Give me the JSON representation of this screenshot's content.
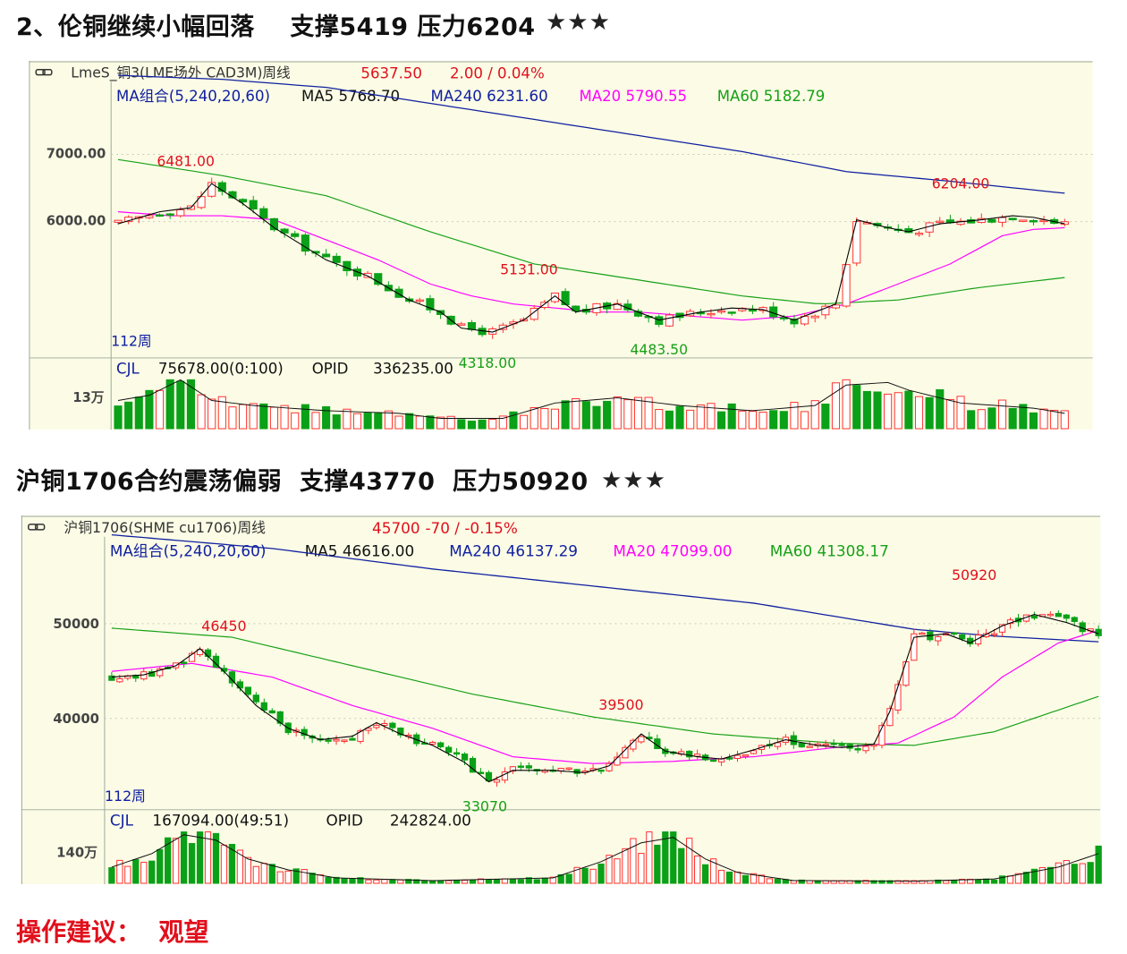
{
  "heading1": "2、伦铜继续小幅回落    支撑5419 压力6204",
  "heading2": "沪铜1706合约震荡偏弱  支撑43770  压力50920",
  "stars": "★★★",
  "advice": "操作建议：  观望",
  "colors": {
    "bg": "#fcfce6",
    "border": "#9aa89a",
    "up": "#ff2f2f",
    "down": "#0aa018",
    "ma5": "#000000",
    "ma20": "#ff00ff",
    "ma60": "#18a018",
    "ma240": "#1020a0",
    "red_text": "#e0101c",
    "green_text": "#18a018",
    "blue_text": "#1020a0"
  },
  "charts": [
    {
      "title_icon": "chain-link-icon",
      "title": "LmeS_铜3(LME场外 CAD3M)周线",
      "price": "5637.50",
      "change": "2.00 / 0.04%",
      "ma_line": "MA组合(5,240,20,60)",
      "ma5": "MA5 5768.70",
      "ma240": "MA240 6231.60",
      "ma20": "MA20 5790.55",
      "ma60": "MA60 5182.79",
      "period": "112周",
      "vol_label": "CJL",
      "vol_value": "75678.00(0:100)",
      "opid_label": "OPID",
      "opid_value": "336235.00",
      "vol_tick": "13万",
      "annotations": [
        {
          "text": "6481.00",
          "kind": "high"
        },
        {
          "text": "5131.00",
          "kind": "high"
        },
        {
          "text": "6204.00",
          "kind": "high"
        },
        {
          "text": "4318.00",
          "kind": "low"
        },
        {
          "text": "4483.50",
          "kind": "low"
        }
      ],
      "chart_data": {
        "type": "candlestick",
        "y_ticks": [
          7000,
          6000
        ],
        "y_tick_labels": [
          "7000.00",
          "6000.00"
        ],
        "ylim": [
          4200,
          7880
        ],
        "bars": 112,
        "close_path": [
          [
            0,
            5850
          ],
          [
            8,
            6000
          ],
          [
            14,
            6050
          ],
          [
            18,
            6350
          ],
          [
            24,
            6100
          ],
          [
            30,
            5800
          ],
          [
            40,
            5400
          ],
          [
            48,
            5200
          ],
          [
            56,
            4900
          ],
          [
            62,
            4750
          ],
          [
            66,
            4550
          ],
          [
            72,
            4500
          ],
          [
            78,
            4650
          ],
          [
            84,
            4950
          ],
          [
            88,
            4750
          ],
          [
            96,
            4850
          ],
          [
            104,
            4650
          ],
          [
            112,
            4750
          ],
          [
            118,
            4800
          ],
          [
            124,
            4780
          ],
          [
            130,
            4650
          ],
          [
            138,
            4850
          ],
          [
            142,
            5900
          ],
          [
            148,
            5800
          ],
          [
            152,
            5750
          ],
          [
            158,
            5850
          ],
          [
            166,
            5900
          ],
          [
            172,
            5950
          ],
          [
            176,
            5930
          ],
          [
            182,
            5850
          ]
        ],
        "ma20_path": [
          [
            0,
            6000
          ],
          [
            10,
            5950
          ],
          [
            20,
            5950
          ],
          [
            30,
            5900
          ],
          [
            40,
            5650
          ],
          [
            50,
            5400
          ],
          [
            60,
            5100
          ],
          [
            68,
            4950
          ],
          [
            76,
            4850
          ],
          [
            84,
            4800
          ],
          [
            92,
            4750
          ],
          [
            100,
            4750
          ],
          [
            110,
            4700
          ],
          [
            120,
            4650
          ],
          [
            130,
            4700
          ],
          [
            140,
            4850
          ],
          [
            150,
            5100
          ],
          [
            160,
            5350
          ],
          [
            170,
            5700
          ],
          [
            176,
            5780
          ],
          [
            182,
            5800
          ]
        ],
        "ma60_path": [
          [
            0,
            6650
          ],
          [
            20,
            6450
          ],
          [
            40,
            6200
          ],
          [
            60,
            5750
          ],
          [
            80,
            5350
          ],
          [
            100,
            5150
          ],
          [
            120,
            4950
          ],
          [
            135,
            4850
          ],
          [
            150,
            4900
          ],
          [
            165,
            5050
          ],
          [
            182,
            5180
          ]
        ],
        "ma240_path": [
          [
            0,
            7700
          ],
          [
            20,
            7650
          ],
          [
            40,
            7550
          ],
          [
            60,
            7350
          ],
          [
            80,
            7150
          ],
          [
            100,
            6950
          ],
          [
            120,
            6750
          ],
          [
            140,
            6500
          ],
          [
            160,
            6380
          ],
          [
            182,
            6230
          ]
        ],
        "highs": [
          [
            13,
            6481
          ],
          [
            79,
            5131
          ],
          [
            162,
            6204
          ]
        ],
        "lows": [
          [
            71,
            4318
          ],
          [
            104,
            4483.5
          ]
        ],
        "volume_ma_path": [
          [
            0,
            0.55
          ],
          [
            6,
            0.65
          ],
          [
            12,
            0.95
          ],
          [
            18,
            0.55
          ],
          [
            26,
            0.45
          ],
          [
            40,
            0.35
          ],
          [
            54,
            0.3
          ],
          [
            62,
            0.2
          ],
          [
            74,
            0.2
          ],
          [
            84,
            0.5
          ],
          [
            96,
            0.6
          ],
          [
            108,
            0.45
          ],
          [
            122,
            0.35
          ],
          [
            134,
            0.45
          ],
          [
            140,
            0.85
          ],
          [
            148,
            0.9
          ],
          [
            152,
            0.75
          ],
          [
            162,
            0.5
          ],
          [
            176,
            0.4
          ],
          [
            182,
            0.3
          ]
        ]
      }
    },
    {
      "title_icon": "chain-link-icon",
      "title": "沪铜1706(SHME cu1706)周线",
      "price": "45700",
      "change": "-70 / -0.15%",
      "ma_line": "MA组合(5,240,20,60)",
      "ma5": "MA5 46616.00",
      "ma240": "MA240 46137.29",
      "ma20": "MA20 47099.00",
      "ma60": "MA60 41308.17",
      "period": "112周",
      "vol_label": "CJL",
      "vol_value": "167094.00(49:51)",
      "opid_label": "OPID",
      "opid_value": "242824.00",
      "vol_tick": "140万",
      "annotations": [
        {
          "text": "46450",
          "kind": "high"
        },
        {
          "text": "39500",
          "kind": "high"
        },
        {
          "text": "50920",
          "kind": "high"
        },
        {
          "text": "33070",
          "kind": "low"
        }
      ],
      "chart_data": {
        "type": "candlestick",
        "y_ticks": [
          50000,
          40000
        ],
        "y_tick_labels": [
          "50000",
          "40000"
        ],
        "ylim": [
          31500,
          57200
        ],
        "bars": 112,
        "close_path": [
          [
            0,
            43000
          ],
          [
            8,
            43200
          ],
          [
            16,
            44000
          ],
          [
            22,
            45500
          ],
          [
            28,
            43500
          ],
          [
            36,
            40500
          ],
          [
            44,
            38500
          ],
          [
            52,
            37500
          ],
          [
            60,
            37800
          ],
          [
            66,
            39000
          ],
          [
            72,
            38000
          ],
          [
            80,
            37000
          ],
          [
            88,
            35500
          ],
          [
            94,
            33800
          ],
          [
            100,
            34800
          ],
          [
            110,
            34800
          ],
          [
            118,
            34600
          ],
          [
            124,
            35200
          ],
          [
            132,
            38000
          ],
          [
            138,
            36500
          ],
          [
            146,
            36000
          ],
          [
            152,
            35800
          ],
          [
            160,
            36600
          ],
          [
            168,
            37500
          ],
          [
            176,
            37000
          ],
          [
            182,
            36800
          ],
          [
            190,
            37100
          ],
          [
            194,
            40000
          ],
          [
            200,
            46500
          ],
          [
            208,
            46800
          ],
          [
            214,
            46000
          ],
          [
            222,
            47500
          ],
          [
            230,
            48500
          ],
          [
            238,
            47800
          ],
          [
            246,
            46800
          ]
        ],
        "ma20_path": [
          [
            0,
            43500
          ],
          [
            20,
            44200
          ],
          [
            40,
            43000
          ],
          [
            60,
            40500
          ],
          [
            80,
            38500
          ],
          [
            100,
            36000
          ],
          [
            120,
            35400
          ],
          [
            140,
            35600
          ],
          [
            160,
            36000
          ],
          [
            180,
            36800
          ],
          [
            196,
            37200
          ],
          [
            210,
            39500
          ],
          [
            222,
            43000
          ],
          [
            236,
            46000
          ],
          [
            246,
            47100
          ]
        ],
        "ma60_path": [
          [
            0,
            47300
          ],
          [
            30,
            46500
          ],
          [
            60,
            44000
          ],
          [
            90,
            41500
          ],
          [
            120,
            39500
          ],
          [
            150,
            38000
          ],
          [
            180,
            37200
          ],
          [
            200,
            37000
          ],
          [
            220,
            38200
          ],
          [
            246,
            41300
          ]
        ],
        "ma240_path": [
          [
            0,
            55500
          ],
          [
            40,
            54300
          ],
          [
            80,
            52500
          ],
          [
            120,
            51000
          ],
          [
            160,
            49500
          ],
          [
            200,
            47200
          ],
          [
            220,
            46600
          ],
          [
            246,
            46100
          ]
        ],
        "highs": [
          [
            28,
            46450
          ],
          [
            127,
            39500
          ],
          [
            215,
            50920
          ]
        ],
        "lows": [
          [
            93,
            33070
          ]
        ],
        "volume_ma_path": [
          [
            0,
            0.3
          ],
          [
            10,
            0.55
          ],
          [
            18,
            0.9
          ],
          [
            26,
            0.8
          ],
          [
            34,
            0.45
          ],
          [
            44,
            0.25
          ],
          [
            56,
            0.1
          ],
          [
            80,
            0.05
          ],
          [
            110,
            0.1
          ],
          [
            122,
            0.4
          ],
          [
            132,
            0.75
          ],
          [
            140,
            0.85
          ],
          [
            148,
            0.45
          ],
          [
            156,
            0.2
          ],
          [
            170,
            0.05
          ],
          [
            200,
            0.04
          ],
          [
            220,
            0.08
          ],
          [
            236,
            0.3
          ],
          [
            246,
            0.55
          ]
        ]
      }
    }
  ]
}
